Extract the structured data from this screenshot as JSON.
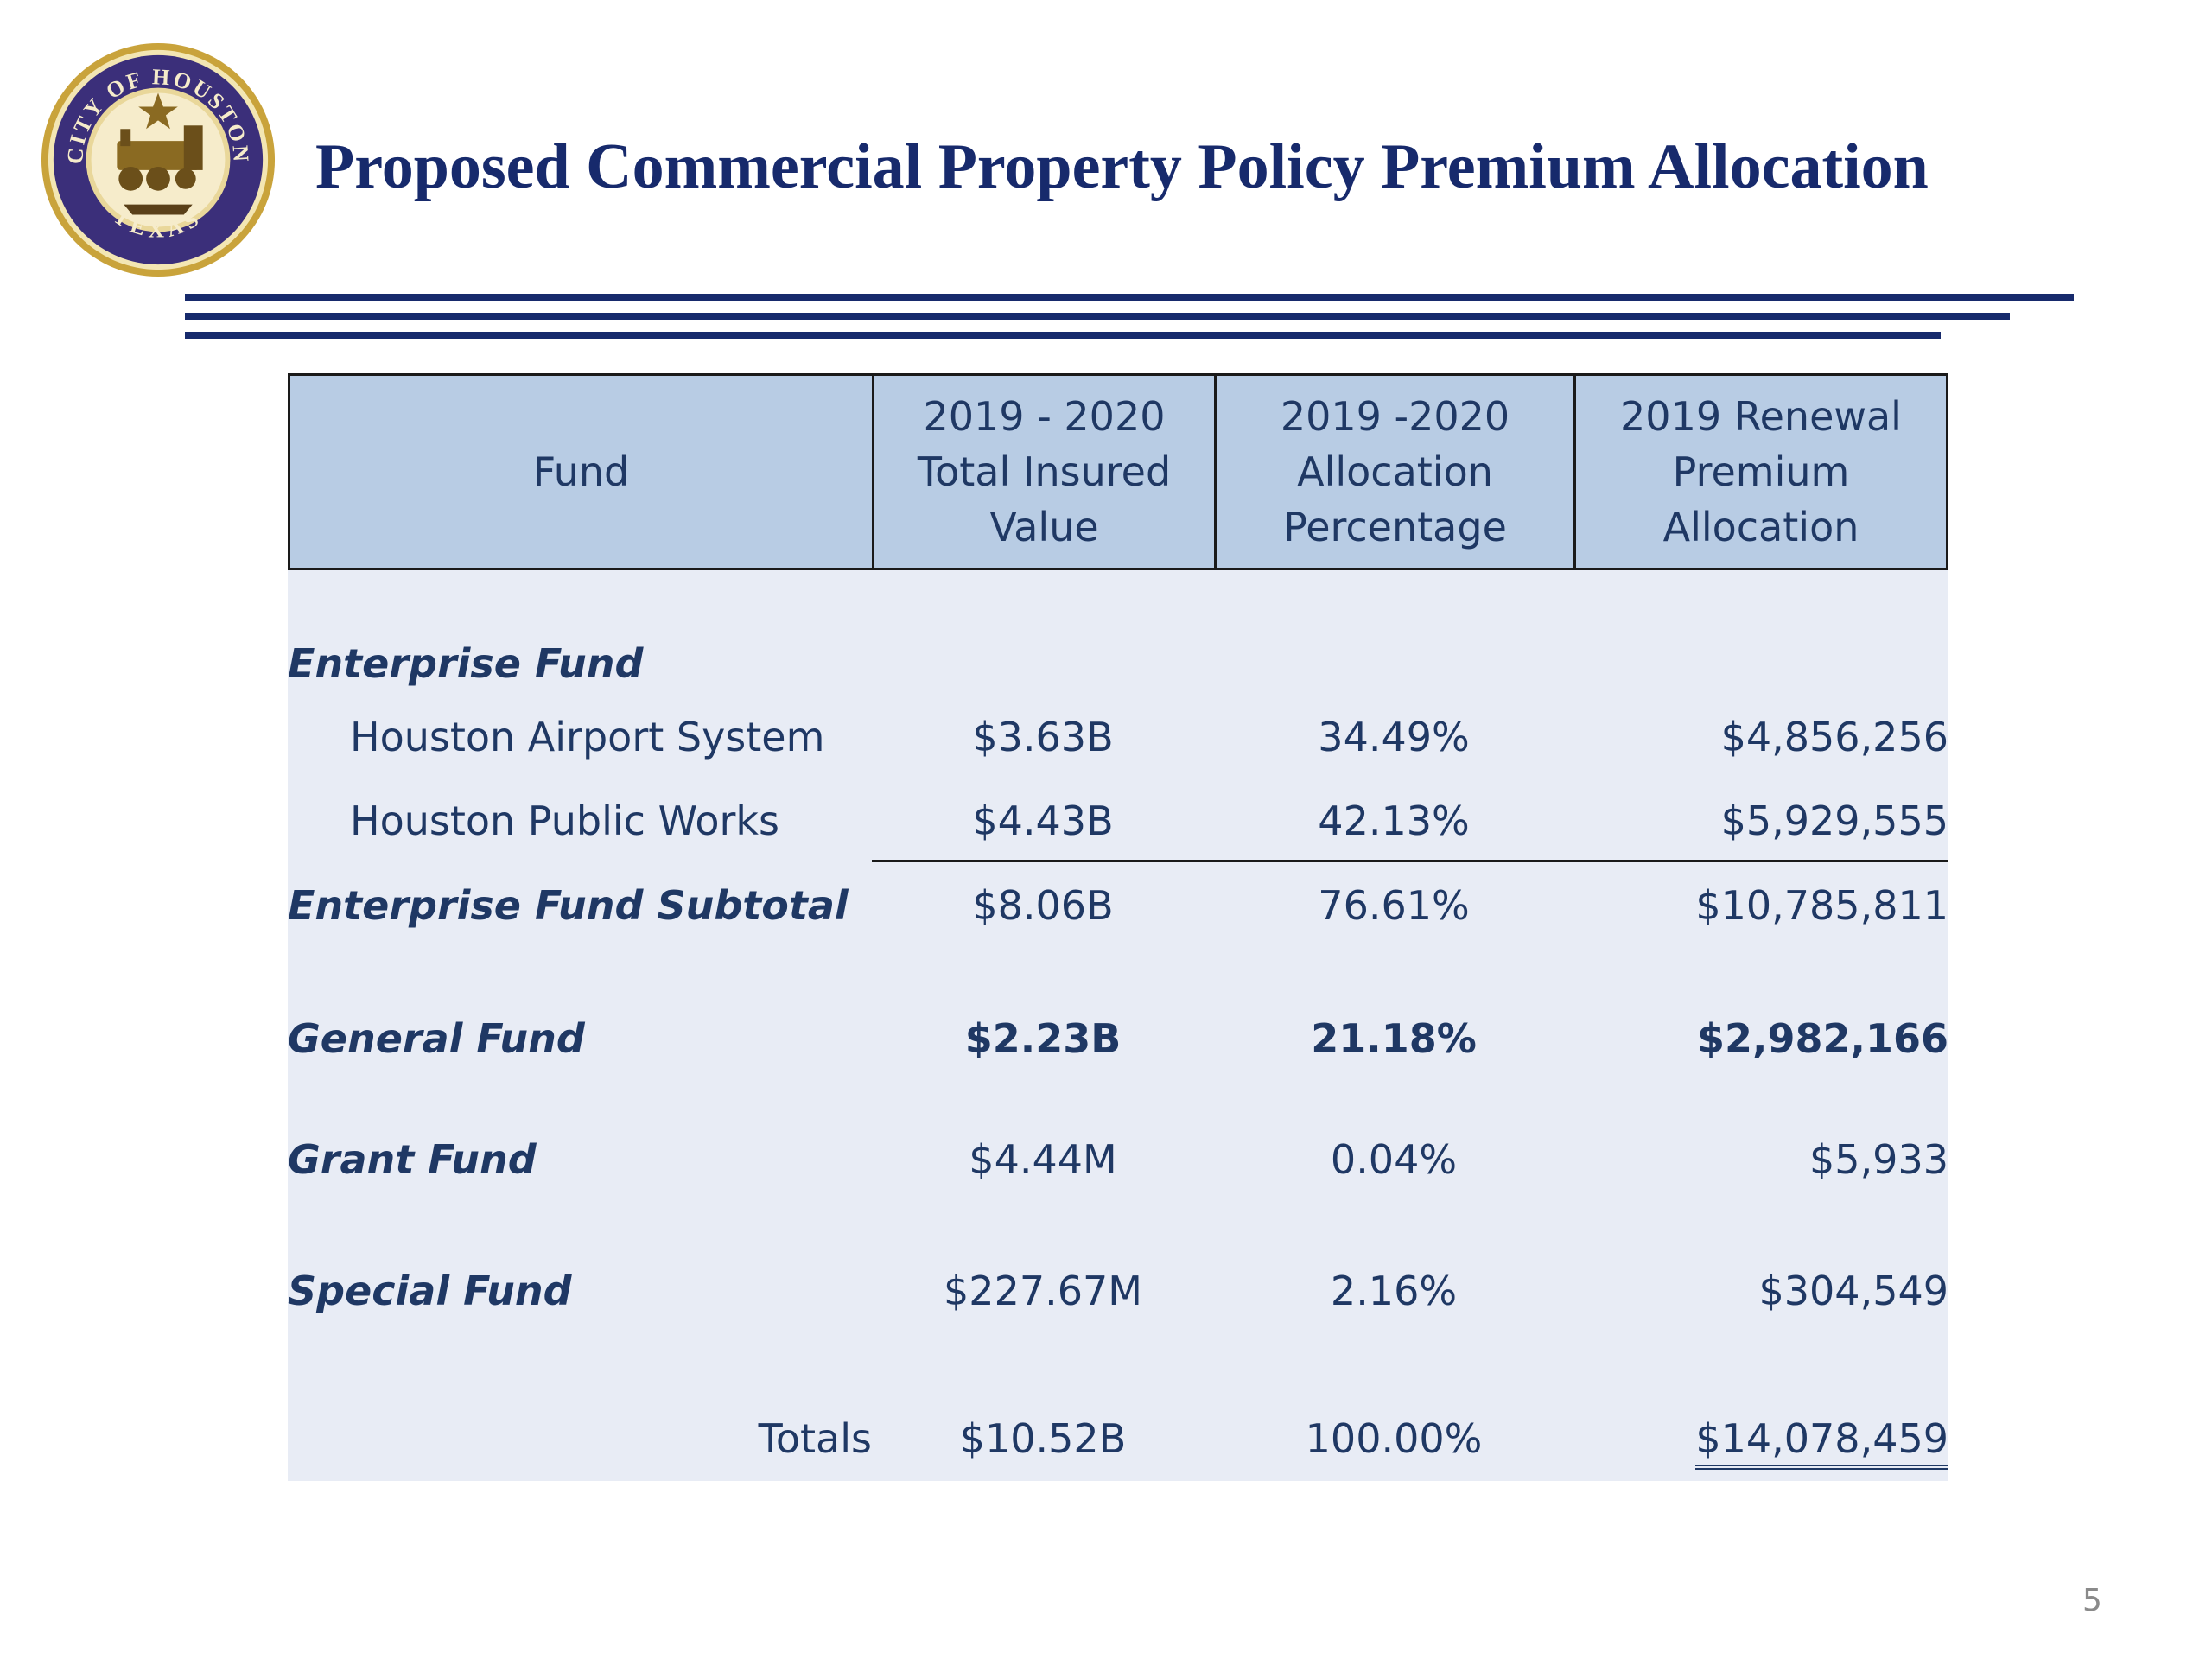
{
  "slide": {
    "title": "Proposed Commercial Property Policy Premium Allocation",
    "page_number": "5",
    "seal": {
      "icon": "city-of-houston-seal-icon",
      "text_top": "CITY OF HOUSTON",
      "text_bottom": "TEXAS"
    }
  },
  "colors": {
    "title": "#172a6c",
    "header_bg": "#b8cce4",
    "body_bg": "#e8ecf5",
    "text": "#1f3864"
  },
  "table": {
    "headers": [
      "Fund",
      "2019 - 2020\nTotal Insured\nValue",
      "2019 -2020\nAllocation\nPercentage",
      "2019 Renewal\nPremium\nAllocation"
    ],
    "rows": [
      {
        "label": "Enterprise Fund"
      },
      {
        "label": "Houston Airport System",
        "tiv": "$3.63B",
        "pct": "34.49%",
        "premium": "$4,856,256"
      },
      {
        "label": "Houston Public Works",
        "tiv": "$4.43B",
        "pct": "42.13%",
        "premium": "$5,929,555"
      },
      {
        "label": "Enterprise Fund Subtotal",
        "tiv": "$8.06B",
        "pct": "76.61%",
        "premium": "$10,785,811"
      },
      {
        "label": "General Fund",
        "tiv": "$2.23B",
        "pct": "21.18%",
        "premium": "$2,982,166"
      },
      {
        "label": "Grant Fund",
        "tiv": "$4.44M",
        "pct": "0.04%",
        "premium": "$5,933"
      },
      {
        "label": "Special Fund",
        "tiv": "$227.67M",
        "pct": "2.16%",
        "premium": "$304,549"
      },
      {
        "label": "Totals",
        "tiv": "$10.52B",
        "pct": "100.00%",
        "premium": "$14,078,459"
      }
    ]
  }
}
